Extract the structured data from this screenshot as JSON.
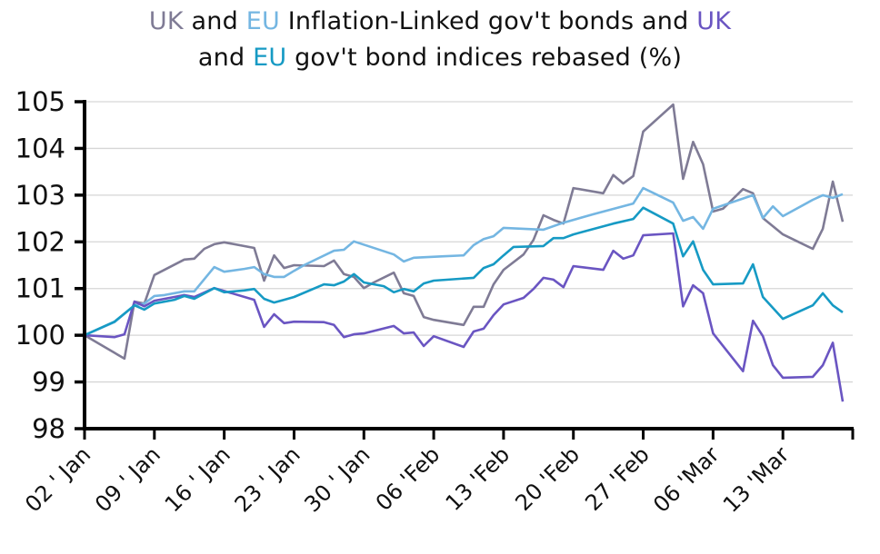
{
  "chart_data": {
    "type": "line",
    "title_parts": {
      "line1": [
        {
          "text": "UK",
          "color": "#7f7b95"
        },
        {
          "text": " and ",
          "color": "#111111"
        },
        {
          "text": "EU",
          "color": "#74b6e2"
        },
        {
          "text": " Inflation-Linked gov't bonds and ",
          "color": "#111111"
        },
        {
          "text": "UK",
          "color": "#6a55c2"
        }
      ],
      "line2": [
        {
          "text": "and ",
          "color": "#111111"
        },
        {
          "text": "EU",
          "color": "#169ac4"
        },
        {
          "text": " gov't bond indices rebased (%)",
          "color": "#111111"
        }
      ]
    },
    "xlabel": "",
    "ylabel": "",
    "ylim": [
      98,
      105
    ],
    "yticks": [
      "98",
      "99",
      "100",
      "101",
      "102",
      "103",
      "104",
      "105"
    ],
    "xlim": [
      "01-02",
      "03-20"
    ],
    "xticks": [
      {
        "date": "01-02",
        "label": "02 ' Jan"
      },
      {
        "date": "01-09",
        "label": "09 ' Jan"
      },
      {
        "date": "01-16",
        "label": "16 ' Jan"
      },
      {
        "date": "01-23",
        "label": "23 ' Jan"
      },
      {
        "date": "01-30",
        "label": "30 ' Jan"
      },
      {
        "date": "02-06",
        "label": "06 'Feb"
      },
      {
        "date": "02-13",
        "label": "13 'Feb"
      },
      {
        "date": "02-20",
        "label": "20 'Feb"
      },
      {
        "date": "02-27",
        "label": "27 'Feb"
      },
      {
        "date": "03-06",
        "label": "06 'Mar"
      },
      {
        "date": "03-13",
        "label": "13 'Mar"
      },
      {
        "date": "03-20",
        "label": ""
      }
    ],
    "grid": "horizontal",
    "legend": "none (series identified by coloured title words)",
    "series": [
      {
        "key": "uk_il",
        "color": "#7f7b95",
        "points": [
          [
            "01-02",
            100.0
          ],
          [
            "01-06",
            99.5
          ],
          [
            "01-07",
            100.72
          ],
          [
            "01-08",
            100.68
          ],
          [
            "01-09",
            101.29
          ],
          [
            "01-12",
            101.62
          ],
          [
            "01-13",
            101.64
          ],
          [
            "01-14",
            101.85
          ],
          [
            "01-15",
            101.95
          ],
          [
            "01-16",
            101.99
          ],
          [
            "01-19",
            101.87
          ],
          [
            "01-20",
            101.17
          ],
          [
            "01-21",
            101.71
          ],
          [
            "01-22",
            101.44
          ],
          [
            "01-23",
            101.5
          ],
          [
            "01-26",
            101.48
          ],
          [
            "01-27",
            101.6
          ],
          [
            "01-28",
            101.31
          ],
          [
            "01-29",
            101.25
          ],
          [
            "01-30",
            101.01
          ],
          [
            "01-31",
            101.13
          ],
          [
            "02-02",
            101.34
          ],
          [
            "02-03",
            100.9
          ],
          [
            "02-04",
            100.84
          ],
          [
            "02-05",
            100.39
          ],
          [
            "02-06",
            100.33
          ],
          [
            "02-09",
            100.22
          ],
          [
            "02-10",
            100.61
          ],
          [
            "02-11",
            100.61
          ],
          [
            "02-12",
            101.09
          ],
          [
            "02-13",
            101.4
          ],
          [
            "02-15",
            101.73
          ],
          [
            "02-16",
            102.04
          ],
          [
            "02-17",
            102.57
          ],
          [
            "02-18",
            102.47
          ],
          [
            "02-19",
            102.39
          ],
          [
            "02-20",
            103.15
          ],
          [
            "02-23",
            103.04
          ],
          [
            "02-24",
            103.43
          ],
          [
            "02-25",
            103.25
          ],
          [
            "02-26",
            103.41
          ],
          [
            "02-27",
            104.36
          ],
          [
            "03-02",
            104.94
          ],
          [
            "03-03",
            103.35
          ],
          [
            "03-04",
            104.14
          ],
          [
            "03-05",
            103.66
          ],
          [
            "03-06",
            102.65
          ],
          [
            "03-07",
            102.71
          ],
          [
            "03-09",
            103.13
          ],
          [
            "03-10",
            103.04
          ],
          [
            "03-11",
            102.51
          ],
          [
            "03-13",
            102.16
          ],
          [
            "03-16",
            101.85
          ],
          [
            "03-17",
            102.28
          ],
          [
            "03-18",
            103.29
          ],
          [
            "03-19",
            102.43
          ]
        ]
      },
      {
        "key": "eu_il",
        "color": "#74b6e2",
        "points": [
          [
            "01-02",
            100.0
          ],
          [
            "01-05",
            100.28
          ],
          [
            "01-07",
            100.64
          ],
          [
            "01-08",
            100.68
          ],
          [
            "01-09",
            100.84
          ],
          [
            "01-10",
            100.86
          ],
          [
            "01-12",
            100.94
          ],
          [
            "01-13",
            100.94
          ],
          [
            "01-15",
            101.46
          ],
          [
            "01-16",
            101.36
          ],
          [
            "01-18",
            101.42
          ],
          [
            "01-19",
            101.46
          ],
          [
            "01-20",
            101.31
          ],
          [
            "01-21",
            101.25
          ],
          [
            "01-22",
            101.25
          ],
          [
            "01-23",
            101.38
          ],
          [
            "01-24",
            101.5
          ],
          [
            "01-27",
            101.81
          ],
          [
            "01-28",
            101.83
          ],
          [
            "01-29",
            102.01
          ],
          [
            "02-02",
            101.73
          ],
          [
            "02-03",
            101.58
          ],
          [
            "02-04",
            101.66
          ],
          [
            "02-07",
            101.69
          ],
          [
            "02-09",
            101.71
          ],
          [
            "02-10",
            101.93
          ],
          [
            "02-11",
            102.06
          ],
          [
            "02-12",
            102.12
          ],
          [
            "02-13",
            102.3
          ],
          [
            "02-17",
            102.26
          ],
          [
            "02-19",
            102.41
          ],
          [
            "02-22",
            102.59
          ],
          [
            "02-26",
            102.82
          ],
          [
            "02-27",
            103.15
          ],
          [
            "03-02",
            102.84
          ],
          [
            "03-03",
            102.45
          ],
          [
            "03-04",
            102.53
          ],
          [
            "03-05",
            102.28
          ],
          [
            "03-06",
            102.71
          ],
          [
            "03-10",
            103.0
          ],
          [
            "03-11",
            102.51
          ],
          [
            "03-12",
            102.76
          ],
          [
            "03-13",
            102.55
          ],
          [
            "03-16",
            102.9
          ],
          [
            "03-17",
            103.0
          ],
          [
            "03-18",
            102.94
          ],
          [
            "03-19",
            103.02
          ]
        ]
      },
      {
        "key": "uk_gov",
        "color": "#6a55c2",
        "points": [
          [
            "01-02",
            100.0
          ],
          [
            "01-05",
            99.96
          ],
          [
            "01-06",
            100.02
          ],
          [
            "01-07",
            100.72
          ],
          [
            "01-08",
            100.62
          ],
          [
            "01-09",
            100.74
          ],
          [
            "01-11",
            100.82
          ],
          [
            "01-12",
            100.86
          ],
          [
            "01-13",
            100.82
          ],
          [
            "01-15",
            101.01
          ],
          [
            "01-19",
            100.76
          ],
          [
            "01-20",
            100.18
          ],
          [
            "01-21",
            100.45
          ],
          [
            "01-22",
            100.26
          ],
          [
            "01-23",
            100.29
          ],
          [
            "01-26",
            100.28
          ],
          [
            "01-27",
            100.22
          ],
          [
            "01-28",
            99.96
          ],
          [
            "01-29",
            100.02
          ],
          [
            "01-30",
            100.04
          ],
          [
            "02-02",
            100.2
          ],
          [
            "02-03",
            100.04
          ],
          [
            "02-04",
            100.06
          ],
          [
            "02-05",
            99.77
          ],
          [
            "02-06",
            99.98
          ],
          [
            "02-09",
            99.75
          ],
          [
            "02-10",
            100.08
          ],
          [
            "02-11",
            100.14
          ],
          [
            "02-12",
            100.43
          ],
          [
            "02-13",
            100.66
          ],
          [
            "02-15",
            100.8
          ],
          [
            "02-16",
            100.99
          ],
          [
            "02-17",
            101.23
          ],
          [
            "02-18",
            101.19
          ],
          [
            "02-19",
            101.03
          ],
          [
            "02-20",
            101.48
          ],
          [
            "02-23",
            101.4
          ],
          [
            "02-24",
            101.81
          ],
          [
            "02-25",
            101.64
          ],
          [
            "02-26",
            101.71
          ],
          [
            "02-27",
            102.14
          ],
          [
            "03-02",
            102.18
          ],
          [
            "03-03",
            100.62
          ],
          [
            "03-04",
            101.07
          ],
          [
            "03-05",
            100.9
          ],
          [
            "03-06",
            100.04
          ],
          [
            "03-09",
            99.23
          ],
          [
            "03-10",
            100.31
          ],
          [
            "03-11",
            99.98
          ],
          [
            "03-12",
            99.36
          ],
          [
            "03-13",
            99.09
          ],
          [
            "03-16",
            99.11
          ],
          [
            "03-17",
            99.36
          ],
          [
            "03-18",
            99.84
          ],
          [
            "03-19",
            98.58
          ]
        ]
      },
      {
        "key": "eu_gov",
        "color": "#169ac4",
        "points": [
          [
            "01-02",
            100.0
          ],
          [
            "01-05",
            100.29
          ],
          [
            "01-07",
            100.64
          ],
          [
            "01-08",
            100.55
          ],
          [
            "01-09",
            100.68
          ],
          [
            "01-11",
            100.76
          ],
          [
            "01-12",
            100.84
          ],
          [
            "01-13",
            100.78
          ],
          [
            "01-15",
            101.01
          ],
          [
            "01-16",
            100.92
          ],
          [
            "01-18",
            100.96
          ],
          [
            "01-19",
            100.99
          ],
          [
            "01-20",
            100.78
          ],
          [
            "01-21",
            100.7
          ],
          [
            "01-22",
            100.76
          ],
          [
            "01-23",
            100.82
          ],
          [
            "01-26",
            101.09
          ],
          [
            "01-27",
            101.07
          ],
          [
            "01-28",
            101.15
          ],
          [
            "01-29",
            101.31
          ],
          [
            "01-30",
            101.13
          ],
          [
            "02-01",
            101.05
          ],
          [
            "02-02",
            100.92
          ],
          [
            "02-03",
            100.99
          ],
          [
            "02-04",
            100.94
          ],
          [
            "02-05",
            101.11
          ],
          [
            "02-06",
            101.17
          ],
          [
            "02-10",
            101.23
          ],
          [
            "02-11",
            101.44
          ],
          [
            "02-12",
            101.52
          ],
          [
            "02-13",
            101.71
          ],
          [
            "02-14",
            101.89
          ],
          [
            "02-17",
            101.91
          ],
          [
            "02-18",
            102.08
          ],
          [
            "02-19",
            102.08
          ],
          [
            "02-20",
            102.16
          ],
          [
            "02-24",
            102.39
          ],
          [
            "02-26",
            102.49
          ],
          [
            "02-27",
            102.73
          ],
          [
            "03-02",
            102.39
          ],
          [
            "03-03",
            101.69
          ],
          [
            "03-04",
            102.01
          ],
          [
            "03-05",
            101.4
          ],
          [
            "03-06",
            101.09
          ],
          [
            "03-09",
            101.11
          ],
          [
            "03-10",
            101.52
          ],
          [
            "03-11",
            100.82
          ],
          [
            "03-13",
            100.35
          ],
          [
            "03-16",
            100.64
          ],
          [
            "03-17",
            100.9
          ],
          [
            "03-18",
            100.64
          ],
          [
            "03-19",
            100.49
          ]
        ]
      }
    ]
  }
}
